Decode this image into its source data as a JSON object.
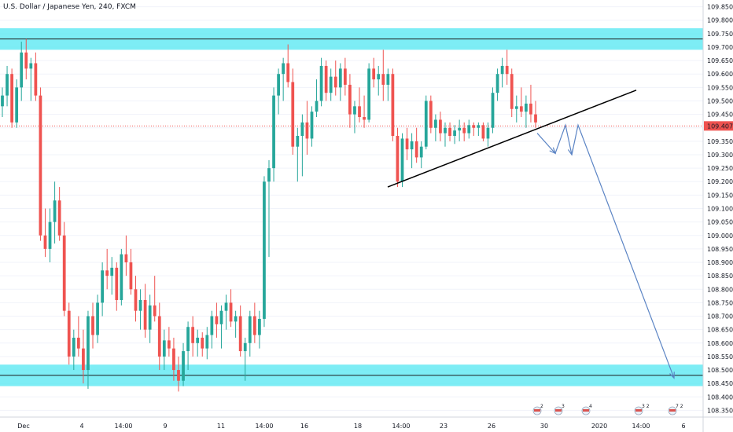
{
  "header": {
    "symbol_title": "U.S. Dollar / Japanese Yen, 240, FXCM"
  },
  "colors": {
    "up_candle": "#26a69a",
    "down_candle": "#ef5350",
    "zone_fill": "#5ce8f2",
    "last_price_bg": "#ef5350",
    "arrow": "#5b84c4",
    "trendline": "#000000",
    "axis_text": "#131722",
    "grid_line": "#e0e3eb"
  },
  "price_scale": {
    "labels": [
      "109.850",
      "109.800",
      "109.750",
      "109.700",
      "109.650",
      "109.600",
      "109.550",
      "109.500",
      "109.450",
      "109.400",
      "109.350",
      "109.300",
      "109.250",
      "109.200",
      "109.150",
      "109.100",
      "109.050",
      "109.000",
      "108.950",
      "108.900",
      "108.850",
      "108.800",
      "108.750",
      "108.700",
      "108.650",
      "108.600",
      "108.550",
      "108.500",
      "108.450",
      "108.400",
      "108.350"
    ],
    "last_price_label": "109.407"
  },
  "time_axis": {
    "labels": [
      "Dec",
      "4",
      "14:00",
      "9",
      "11",
      "14:00",
      "16",
      "18",
      "14:00",
      "23",
      "26",
      "30",
      "2020",
      "14:00",
      "6"
    ]
  },
  "event_markers": [
    "2",
    "3",
    "4",
    "3 2",
    "7 2"
  ],
  "chart_data": {
    "type": "candlestick",
    "title": "U.S. Dollar / Japanese Yen, 240, FXCM",
    "xlabel": "",
    "ylabel": "",
    "ylim": [
      108.325,
      109.875
    ],
    "last_price": 109.407,
    "zones": [
      {
        "name": "resistance",
        "low": 109.69,
        "high": 109.77,
        "line": 109.73
      },
      {
        "name": "support",
        "low": 108.44,
        "high": 108.52,
        "line": 108.48
      }
    ],
    "trendline": {
      "from_price": 109.18,
      "to_price": 109.54
    },
    "projection_path": [
      109.38,
      109.305,
      109.41,
      109.3,
      109.41,
      108.47
    ],
    "candles": [
      [
        109.48,
        109.55,
        109.44,
        109.52
      ],
      [
        109.52,
        109.63,
        109.48,
        109.6
      ],
      [
        109.6,
        109.62,
        109.4,
        109.42
      ],
      [
        109.42,
        109.58,
        109.4,
        109.55
      ],
      [
        109.55,
        109.72,
        109.5,
        109.68
      ],
      [
        109.68,
        109.73,
        109.58,
        109.62
      ],
      [
        109.62,
        109.66,
        109.5,
        109.64
      ],
      [
        109.64,
        109.68,
        109.5,
        109.52
      ],
      [
        109.52,
        109.55,
        108.98,
        109.0
      ],
      [
        109.0,
        109.1,
        108.92,
        108.95
      ],
      [
        108.95,
        109.1,
        108.9,
        109.05
      ],
      [
        109.05,
        109.2,
        108.97,
        109.13
      ],
      [
        109.13,
        109.18,
        108.98,
        109.0
      ],
      [
        109.0,
        109.05,
        108.7,
        108.72
      ],
      [
        108.72,
        108.75,
        108.52,
        108.55
      ],
      [
        108.55,
        108.65,
        108.5,
        108.62
      ],
      [
        108.62,
        108.7,
        108.55,
        108.58
      ],
      [
        108.58,
        108.65,
        108.45,
        108.5
      ],
      [
        108.5,
        108.72,
        108.43,
        108.7
      ],
      [
        108.7,
        108.75,
        108.58,
        108.63
      ],
      [
        108.63,
        108.78,
        108.6,
        108.75
      ],
      [
        108.75,
        108.9,
        108.7,
        108.87
      ],
      [
        108.87,
        108.95,
        108.8,
        108.85
      ],
      [
        108.85,
        108.92,
        108.78,
        108.88
      ],
      [
        108.88,
        108.9,
        108.72,
        108.76
      ],
      [
        108.76,
        108.95,
        108.74,
        108.93
      ],
      [
        108.93,
        109.0,
        108.85,
        108.9
      ],
      [
        108.9,
        108.95,
        108.78,
        108.8
      ],
      [
        108.8,
        108.85,
        108.68,
        108.72
      ],
      [
        108.72,
        108.8,
        108.65,
        108.76
      ],
      [
        108.76,
        108.82,
        108.62,
        108.65
      ],
      [
        108.65,
        108.78,
        108.6,
        108.74
      ],
      [
        108.74,
        108.85,
        108.68,
        108.7
      ],
      [
        108.7,
        108.75,
        108.5,
        108.55
      ],
      [
        108.55,
        108.65,
        108.5,
        108.61
      ],
      [
        108.61,
        108.66,
        108.55,
        108.58
      ],
      [
        108.58,
        108.62,
        108.46,
        108.5
      ],
      [
        108.5,
        108.55,
        108.42,
        108.46
      ],
      [
        108.46,
        108.6,
        108.44,
        108.57
      ],
      [
        108.57,
        108.68,
        108.5,
        108.66
      ],
      [
        108.66,
        108.7,
        108.55,
        108.6
      ],
      [
        108.6,
        108.65,
        108.55,
        108.62
      ],
      [
        108.62,
        108.64,
        108.55,
        108.58
      ],
      [
        108.58,
        108.66,
        108.54,
        108.63
      ],
      [
        108.63,
        108.72,
        108.58,
        108.7
      ],
      [
        108.7,
        108.75,
        108.62,
        108.67
      ],
      [
        108.67,
        108.74,
        108.58,
        108.72
      ],
      [
        108.72,
        108.78,
        108.65,
        108.75
      ],
      [
        108.75,
        108.8,
        108.66,
        108.68
      ],
      [
        108.68,
        108.72,
        108.62,
        108.7
      ],
      [
        108.7,
        108.74,
        108.55,
        108.57
      ],
      [
        108.57,
        108.62,
        108.46,
        108.6
      ],
      [
        108.6,
        108.72,
        108.55,
        108.7
      ],
      [
        108.7,
        108.75,
        108.6,
        108.63
      ],
      [
        108.63,
        108.72,
        108.58,
        108.69
      ],
      [
        108.69,
        109.22,
        108.66,
        109.2
      ],
      [
        109.2,
        109.28,
        108.92,
        109.25
      ],
      [
        109.25,
        109.55,
        109.2,
        109.52
      ],
      [
        109.52,
        109.62,
        109.45,
        109.6
      ],
      [
        109.6,
        109.66,
        109.5,
        109.64
      ],
      [
        109.64,
        109.71,
        109.55,
        109.57
      ],
      [
        109.57,
        109.62,
        109.3,
        109.33
      ],
      [
        109.33,
        109.4,
        109.2,
        109.37
      ],
      [
        109.37,
        109.45,
        109.22,
        109.42
      ],
      [
        109.42,
        109.5,
        109.3,
        109.36
      ],
      [
        109.36,
        109.48,
        109.33,
        109.46
      ],
      [
        109.46,
        109.58,
        109.44,
        109.5
      ],
      [
        109.5,
        109.66,
        109.48,
        109.63
      ],
      [
        109.63,
        109.65,
        109.5,
        109.53
      ],
      [
        109.53,
        109.62,
        109.5,
        109.59
      ],
      [
        109.59,
        109.65,
        109.52,
        109.55
      ],
      [
        109.55,
        109.64,
        109.5,
        109.62
      ],
      [
        109.62,
        109.66,
        109.52,
        109.56
      ],
      [
        109.56,
        109.6,
        109.4,
        109.45
      ],
      [
        109.45,
        109.5,
        109.38,
        109.48
      ],
      [
        109.48,
        109.55,
        109.42,
        109.44
      ],
      [
        109.44,
        109.52,
        109.4,
        109.43
      ],
      [
        109.43,
        109.64,
        109.42,
        109.62
      ],
      [
        109.62,
        109.66,
        109.55,
        109.58
      ],
      [
        109.58,
        109.63,
        109.52,
        109.6
      ],
      [
        109.6,
        109.69,
        109.5,
        109.56
      ],
      [
        109.56,
        109.62,
        109.5,
        109.6
      ],
      [
        109.6,
        109.62,
        109.35,
        109.37
      ],
      [
        109.37,
        109.4,
        109.18,
        109.2
      ],
      [
        109.2,
        109.38,
        109.18,
        109.36
      ],
      [
        109.36,
        109.4,
        109.28,
        109.32
      ],
      [
        109.32,
        109.38,
        109.25,
        109.35
      ],
      [
        109.35,
        109.4,
        109.27,
        109.29
      ],
      [
        109.29,
        109.35,
        109.25,
        109.33
      ],
      [
        109.33,
        109.52,
        109.32,
        109.5
      ],
      [
        109.5,
        109.52,
        109.38,
        109.4
      ],
      [
        109.4,
        109.45,
        109.35,
        109.43
      ],
      [
        109.43,
        109.46,
        109.35,
        109.38
      ],
      [
        109.38,
        109.42,
        109.33,
        109.4
      ],
      [
        109.4,
        109.42,
        109.35,
        109.37
      ],
      [
        109.37,
        109.41,
        109.34,
        109.39
      ],
      [
        109.39,
        109.43,
        109.35,
        109.4
      ],
      [
        109.4,
        109.42,
        109.35,
        109.38
      ],
      [
        109.38,
        109.43,
        109.36,
        109.41
      ],
      [
        109.41,
        109.42,
        109.37,
        109.4
      ],
      [
        109.4,
        109.42,
        109.37,
        109.41
      ],
      [
        109.41,
        109.42,
        109.35,
        109.36
      ],
      [
        109.36,
        109.42,
        109.33,
        109.4
      ],
      [
        109.4,
        109.55,
        109.38,
        109.53
      ],
      [
        109.53,
        109.62,
        109.5,
        109.6
      ],
      [
        109.6,
        109.66,
        109.55,
        109.63
      ],
      [
        109.63,
        109.69,
        109.56,
        109.6
      ],
      [
        109.6,
        109.62,
        109.44,
        109.47
      ],
      [
        109.47,
        109.52,
        109.42,
        109.48
      ],
      [
        109.48,
        109.55,
        109.44,
        109.46
      ],
      [
        109.46,
        109.52,
        109.4,
        109.49
      ],
      [
        109.49,
        109.56,
        109.42,
        109.45
      ],
      [
        109.45,
        109.5,
        109.4,
        109.42
      ]
    ]
  }
}
